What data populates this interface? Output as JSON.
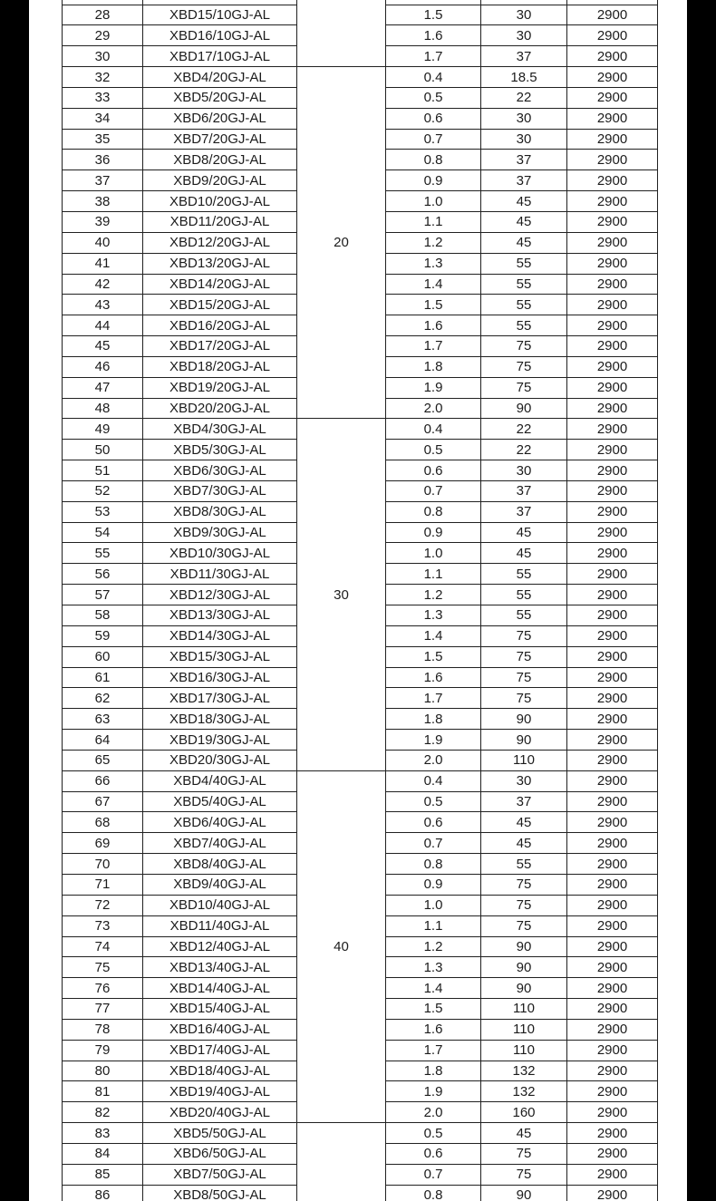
{
  "page": {
    "background_color": "#000000",
    "paper_color": "#ffffff",
    "border_color": "#212121",
    "text_color": "#1c1c1c"
  },
  "table": {
    "note": "continuation of a pump specification table; no headers visible in this crop",
    "speed_constant": "2900",
    "groups": [
      {
        "label": "",
        "rows": [
          {
            "no": "",
            "model": "",
            "pressure": "",
            "power": "",
            "speed": ""
          },
          {
            "no": "28",
            "model": "XBD15/10GJ-AL",
            "pressure": "1.5",
            "power": "30",
            "speed": "2900"
          },
          {
            "no": "29",
            "model": "XBD16/10GJ-AL",
            "pressure": "1.6",
            "power": "30",
            "speed": "2900"
          },
          {
            "no": "30",
            "model": "XBD17/10GJ-AL",
            "pressure": "1.7",
            "power": "37",
            "speed": "2900"
          }
        ]
      },
      {
        "label": "20",
        "rows": [
          {
            "no": "32",
            "model": "XBD4/20GJ-AL",
            "pressure": "0.4",
            "power": "18.5",
            "speed": "2900"
          },
          {
            "no": "33",
            "model": "XBD5/20GJ-AL",
            "pressure": "0.5",
            "power": "22",
            "speed": "2900"
          },
          {
            "no": "34",
            "model": "XBD6/20GJ-AL",
            "pressure": "0.6",
            "power": "30",
            "speed": "2900"
          },
          {
            "no": "35",
            "model": "XBD7/20GJ-AL",
            "pressure": "0.7",
            "power": "30",
            "speed": "2900"
          },
          {
            "no": "36",
            "model": "XBD8/20GJ-AL",
            "pressure": "0.8",
            "power": "37",
            "speed": "2900"
          },
          {
            "no": "37",
            "model": "XBD9/20GJ-AL",
            "pressure": "0.9",
            "power": "37",
            "speed": "2900"
          },
          {
            "no": "38",
            "model": "XBD10/20GJ-AL",
            "pressure": "1.0",
            "power": "45",
            "speed": "2900"
          },
          {
            "no": "39",
            "model": "XBD11/20GJ-AL",
            "pressure": "1.1",
            "power": "45",
            "speed": "2900"
          },
          {
            "no": "40",
            "model": "XBD12/20GJ-AL",
            "pressure": "1.2",
            "power": "45",
            "speed": "2900"
          },
          {
            "no": "41",
            "model": "XBD13/20GJ-AL",
            "pressure": "1.3",
            "power": "55",
            "speed": "2900"
          },
          {
            "no": "42",
            "model": "XBD14/20GJ-AL",
            "pressure": "1.4",
            "power": "55",
            "speed": "2900"
          },
          {
            "no": "43",
            "model": "XBD15/20GJ-AL",
            "pressure": "1.5",
            "power": "55",
            "speed": "2900"
          },
          {
            "no": "44",
            "model": "XBD16/20GJ-AL",
            "pressure": "1.6",
            "power": "55",
            "speed": "2900"
          },
          {
            "no": "45",
            "model": "XBD17/20GJ-AL",
            "pressure": "1.7",
            "power": "75",
            "speed": "2900"
          },
          {
            "no": "46",
            "model": "XBD18/20GJ-AL",
            "pressure": "1.8",
            "power": "75",
            "speed": "2900"
          },
          {
            "no": "47",
            "model": "XBD19/20GJ-AL",
            "pressure": "1.9",
            "power": "75",
            "speed": "2900"
          },
          {
            "no": "48",
            "model": "XBD20/20GJ-AL",
            "pressure": "2.0",
            "power": "90",
            "speed": "2900"
          }
        ]
      },
      {
        "label": "30",
        "rows": [
          {
            "no": "49",
            "model": "XBD4/30GJ-AL",
            "pressure": "0.4",
            "power": "22",
            "speed": "2900"
          },
          {
            "no": "50",
            "model": "XBD5/30GJ-AL",
            "pressure": "0.5",
            "power": "22",
            "speed": "2900"
          },
          {
            "no": "51",
            "model": "XBD6/30GJ-AL",
            "pressure": "0.6",
            "power": "30",
            "speed": "2900"
          },
          {
            "no": "52",
            "model": "XBD7/30GJ-AL",
            "pressure": "0.7",
            "power": "37",
            "speed": "2900"
          },
          {
            "no": "53",
            "model": "XBD8/30GJ-AL",
            "pressure": "0.8",
            "power": "37",
            "speed": "2900"
          },
          {
            "no": "54",
            "model": "XBD9/30GJ-AL",
            "pressure": "0.9",
            "power": "45",
            "speed": "2900"
          },
          {
            "no": "55",
            "model": "XBD10/30GJ-AL",
            "pressure": "1.0",
            "power": "45",
            "speed": "2900"
          },
          {
            "no": "56",
            "model": "XBD11/30GJ-AL",
            "pressure": "1.1",
            "power": "55",
            "speed": "2900"
          },
          {
            "no": "57",
            "model": "XBD12/30GJ-AL",
            "pressure": "1.2",
            "power": "55",
            "speed": "2900"
          },
          {
            "no": "58",
            "model": "XBD13/30GJ-AL",
            "pressure": "1.3",
            "power": "55",
            "speed": "2900"
          },
          {
            "no": "59",
            "model": "XBD14/30GJ-AL",
            "pressure": "1.4",
            "power": "75",
            "speed": "2900"
          },
          {
            "no": "60",
            "model": "XBD15/30GJ-AL",
            "pressure": "1.5",
            "power": "75",
            "speed": "2900"
          },
          {
            "no": "61",
            "model": "XBD16/30GJ-AL",
            "pressure": "1.6",
            "power": "75",
            "speed": "2900"
          },
          {
            "no": "62",
            "model": "XBD17/30GJ-AL",
            "pressure": "1.7",
            "power": "75",
            "speed": "2900"
          },
          {
            "no": "63",
            "model": "XBD18/30GJ-AL",
            "pressure": "1.8",
            "power": "90",
            "speed": "2900"
          },
          {
            "no": "64",
            "model": "XBD19/30GJ-AL",
            "pressure": "1.9",
            "power": "90",
            "speed": "2900"
          },
          {
            "no": "65",
            "model": "XBD20/30GJ-AL",
            "pressure": "2.0",
            "power": "110",
            "speed": "2900"
          }
        ]
      },
      {
        "label": "40",
        "rows": [
          {
            "no": "66",
            "model": "XBD4/40GJ-AL",
            "pressure": "0.4",
            "power": "30",
            "speed": "2900"
          },
          {
            "no": "67",
            "model": "XBD5/40GJ-AL",
            "pressure": "0.5",
            "power": "37",
            "speed": "2900"
          },
          {
            "no": "68",
            "model": "XBD6/40GJ-AL",
            "pressure": "0.6",
            "power": "45",
            "speed": "2900"
          },
          {
            "no": "69",
            "model": "XBD7/40GJ-AL",
            "pressure": "0.7",
            "power": "45",
            "speed": "2900"
          },
          {
            "no": "70",
            "model": "XBD8/40GJ-AL",
            "pressure": "0.8",
            "power": "55",
            "speed": "2900"
          },
          {
            "no": "71",
            "model": "XBD9/40GJ-AL",
            "pressure": "0.9",
            "power": "75",
            "speed": "2900"
          },
          {
            "no": "72",
            "model": "XBD10/40GJ-AL",
            "pressure": "1.0",
            "power": "75",
            "speed": "2900"
          },
          {
            "no": "73",
            "model": "XBD11/40GJ-AL",
            "pressure": "1.1",
            "power": "75",
            "speed": "2900"
          },
          {
            "no": "74",
            "model": "XBD12/40GJ-AL",
            "pressure": "1.2",
            "power": "90",
            "speed": "2900"
          },
          {
            "no": "75",
            "model": "XBD13/40GJ-AL",
            "pressure": "1.3",
            "power": "90",
            "speed": "2900"
          },
          {
            "no": "76",
            "model": "XBD14/40GJ-AL",
            "pressure": "1.4",
            "power": "90",
            "speed": "2900"
          },
          {
            "no": "77",
            "model": "XBD15/40GJ-AL",
            "pressure": "1.5",
            "power": "110",
            "speed": "2900"
          },
          {
            "no": "78",
            "model": "XBD16/40GJ-AL",
            "pressure": "1.6",
            "power": "110",
            "speed": "2900"
          },
          {
            "no": "79",
            "model": "XBD17/40GJ-AL",
            "pressure": "1.7",
            "power": "110",
            "speed": "2900"
          },
          {
            "no": "80",
            "model": "XBD18/40GJ-AL",
            "pressure": "1.8",
            "power": "132",
            "speed": "2900"
          },
          {
            "no": "81",
            "model": "XBD19/40GJ-AL",
            "pressure": "1.9",
            "power": "132",
            "speed": "2900"
          },
          {
            "no": "82",
            "model": "XBD20/40GJ-AL",
            "pressure": "2.0",
            "power": "160",
            "speed": "2900"
          }
        ]
      },
      {
        "label": "",
        "rows": [
          {
            "no": "83",
            "model": "XBD5/50GJ-AL",
            "pressure": "0.5",
            "power": "45",
            "speed": "2900"
          },
          {
            "no": "84",
            "model": "XBD6/50GJ-AL",
            "pressure": "0.6",
            "power": "75",
            "speed": "2900"
          },
          {
            "no": "85",
            "model": "XBD7/50GJ-AL",
            "pressure": "0.7",
            "power": "75",
            "speed": "2900"
          },
          {
            "no": "86",
            "model": "XBD8/50GJ-AL",
            "pressure": "0.8",
            "power": "90",
            "speed": "2900"
          }
        ]
      }
    ]
  }
}
